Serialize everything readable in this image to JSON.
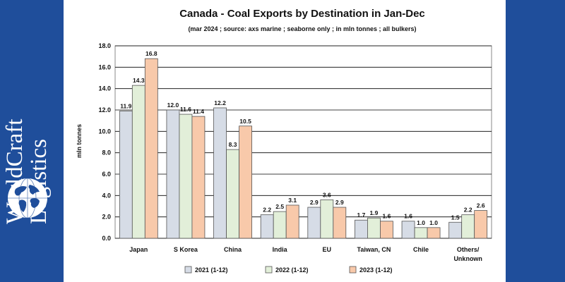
{
  "brand": {
    "line1": "WorldCraft",
    "line2": "Logistics",
    "color": "#1f4e9b"
  },
  "chart_data": {
    "type": "bar",
    "title": "Canada - Coal Exports by Destination in Jan-Dec",
    "subtitle": "(mar 2024 ; source: axs marine ; seaborne only ; in mln tonnes ; all bulkers)",
    "ylabel": "mln tonnes",
    "xlabel": "",
    "ylim": [
      0,
      18
    ],
    "yticks": [
      "0.0",
      "2.0",
      "4.0",
      "6.0",
      "8.0",
      "10.0",
      "12.0",
      "14.0",
      "16.0",
      "18.0"
    ],
    "grid": true,
    "legend_position": "bottom",
    "categories": [
      "Japan",
      "S Korea",
      "China",
      "India",
      "EU",
      "Taiwan, CN",
      "Chile",
      "Others/ Unknown"
    ],
    "series": [
      {
        "name": "2021 (1-12)",
        "color": "#d6dce6",
        "values": [
          11.9,
          12.0,
          12.2,
          2.2,
          2.9,
          1.7,
          1.6,
          1.5
        ],
        "labels": [
          "11.9",
          "12.0",
          "12.2",
          "2.2",
          "2.9",
          "1.7",
          "1.6",
          "1.5"
        ]
      },
      {
        "name": "2022 (1-12)",
        "color": "#e2efd9",
        "values": [
          14.3,
          11.6,
          8.3,
          2.5,
          3.6,
          1.9,
          1.0,
          2.2
        ],
        "labels": [
          "14.3",
          "11.6",
          "8.3",
          "2.5",
          "3.6",
          "1.9",
          "1.0",
          "2.2"
        ]
      },
      {
        "name": "2023 (1-12)",
        "color": "#f8c9aa",
        "values": [
          16.8,
          11.4,
          10.5,
          3.1,
          2.9,
          1.6,
          1.0,
          2.6
        ],
        "labels": [
          "16.8",
          "11.4",
          "10.5",
          "3.1",
          "2.9",
          "1.6",
          "1.0",
          "2.6"
        ]
      }
    ]
  }
}
